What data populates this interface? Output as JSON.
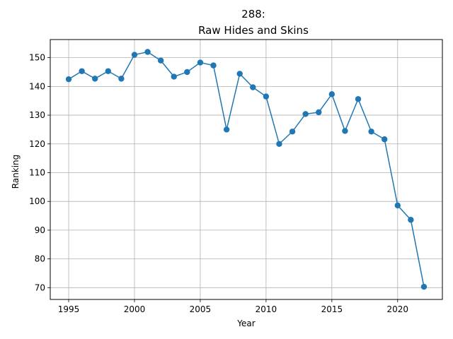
{
  "chart_data": {
    "type": "line",
    "title_line1": "288:",
    "title_line2": "Raw Hides and Skins",
    "xlabel": "Year",
    "ylabel": "Ranking",
    "xlim": [
      1993.6,
      2023.4
    ],
    "ylim": [
      65.9,
      156.3
    ],
    "x_ticks": [
      1995,
      2000,
      2005,
      2010,
      2015,
      2020
    ],
    "y_ticks": [
      70,
      80,
      90,
      100,
      110,
      120,
      130,
      140,
      150
    ],
    "grid": true,
    "series": [
      {
        "color": "#1f77b4",
        "marker": "circle",
        "x": [
          1995,
          1996,
          1997,
          1998,
          1999,
          2000,
          2001,
          2002,
          2003,
          2004,
          2005,
          2006,
          2007,
          2008,
          2009,
          2010,
          2011,
          2012,
          2013,
          2014,
          2015,
          2016,
          2017,
          2018,
          2019,
          2020,
          2021,
          2022
        ],
        "y": [
          142.5,
          145.3,
          142.7,
          145.3,
          142.7,
          151.0,
          152.0,
          149.0,
          143.4,
          145.0,
          148.3,
          147.3,
          125.0,
          144.4,
          139.7,
          136.5,
          120.0,
          124.3,
          130.4,
          131.0,
          137.3,
          124.5,
          135.6,
          124.3,
          121.6,
          98.6,
          93.6,
          70.3
        ]
      }
    ]
  }
}
